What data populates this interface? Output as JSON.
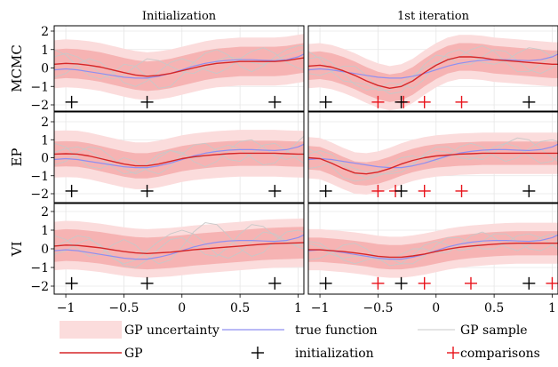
{
  "colors": {
    "band_outer": "#fbdcdc",
    "band_inner": "#f6b3b3",
    "gp_mean": "#d62728",
    "true_function": "#8f8ff0",
    "gp_sample": "#c8c8c8",
    "initialization_marker": "#000000",
    "comparison_marker": "#e8131b",
    "axes": "#000000"
  },
  "chart_data": {
    "type": "line",
    "layout": "3x2 grid of subplots",
    "column_titles": [
      "Initialization",
      "1st iteration"
    ],
    "row_labels": [
      "MCMC",
      "EP",
      "VI"
    ],
    "xlim": [
      -1.1,
      1.05
    ],
    "ylim": [
      -2.4,
      2.4
    ],
    "xticks": [
      -1,
      -0.5,
      0,
      0.5,
      1
    ],
    "xtick_labels": [
      "−1",
      "−0.5",
      "0",
      "0.5",
      "1"
    ],
    "yticks": [
      -2,
      -1,
      0,
      1,
      2
    ],
    "ytick_labels": [
      "−2",
      "−1",
      "0",
      "1",
      "2"
    ],
    "grid": true,
    "legend_position": "bottom",
    "legend": [
      {
        "key": "band",
        "label": "GP uncertainty"
      },
      {
        "key": "true",
        "label": "true function"
      },
      {
        "key": "sample",
        "label": "GP sample"
      },
      {
        "key": "mean",
        "label": "GP"
      },
      {
        "key": "init",
        "label": "initialization"
      },
      {
        "key": "comp",
        "label": "comparisons"
      }
    ],
    "x": [
      -1.1,
      -1.0,
      -0.9,
      -0.8,
      -0.7,
      -0.6,
      -0.5,
      -0.4,
      -0.3,
      -0.2,
      -0.1,
      0.0,
      0.1,
      0.2,
      0.3,
      0.4,
      0.5,
      0.6,
      0.7,
      0.8,
      0.9,
      1.0,
      1.05
    ],
    "true_function": [
      -0.1,
      -0.05,
      -0.1,
      -0.2,
      -0.3,
      -0.4,
      -0.5,
      -0.55,
      -0.55,
      -0.45,
      -0.3,
      -0.1,
      0.1,
      0.25,
      0.35,
      0.42,
      0.45,
      0.45,
      0.42,
      0.4,
      0.45,
      0.6,
      0.75
    ],
    "panels": [
      {
        "row": 0,
        "col": 0,
        "mean": [
          0.2,
          0.25,
          0.22,
          0.15,
          0.05,
          -0.1,
          -0.25,
          -0.38,
          -0.45,
          -0.4,
          -0.3,
          -0.15,
          0.0,
          0.15,
          0.25,
          0.3,
          0.35,
          0.35,
          0.35,
          0.35,
          0.4,
          0.5,
          0.55
        ],
        "inner_sd": 0.8,
        "outer_sd": 1.3,
        "initialization": [
          -0.95,
          -0.3,
          0.8
        ],
        "comparisons": [],
        "samples": [
          [
            0.6,
            0.8,
            0.6,
            0.2,
            -0.3,
            -0.6,
            -0.4,
            0.1,
            0.5,
            0.4,
            0.1,
            -0.2,
            -0.3,
            0.0,
            0.4,
            0.6,
            0.5,
            0.3,
            0.2,
            0.4,
            0.7,
            0.9,
            1.0
          ],
          [
            -0.5,
            -0.3,
            0.2,
            0.5,
            0.3,
            -0.2,
            -0.8,
            -1.0,
            -0.7,
            -0.2,
            0.3,
            0.5,
            0.3,
            -0.1,
            -0.3,
            0.0,
            0.5,
            0.9,
            1.1,
            0.8,
            0.3,
            0.0,
            -0.1
          ],
          [
            1.0,
            0.7,
            0.1,
            -0.4,
            -0.6,
            -0.3,
            0.2,
            0.1,
            -0.5,
            -1.1,
            -1.0,
            -0.4,
            0.3,
            0.8,
            1.0,
            0.7,
            0.1,
            -0.2,
            0.1,
            0.6,
            1.0,
            1.2,
            1.2
          ]
        ]
      },
      {
        "row": 0,
        "col": 1,
        "mean": [
          0.1,
          0.15,
          0.05,
          -0.15,
          -0.4,
          -0.7,
          -0.95,
          -1.1,
          -1.0,
          -0.7,
          -0.25,
          0.15,
          0.45,
          0.6,
          0.6,
          0.55,
          0.45,
          0.4,
          0.35,
          0.3,
          0.25,
          0.2,
          0.2
        ],
        "inner_sd": 0.75,
        "outer_sd": 1.2,
        "initialization": [
          -0.95,
          -0.3,
          0.8
        ],
        "comparisons": [
          -0.5,
          -0.28,
          -0.1,
          0.22
        ],
        "samples": [
          [
            0.5,
            0.6,
            0.3,
            -0.3,
            -0.9,
            -1.2,
            -1.1,
            -0.8,
            -0.9,
            -1.1,
            -0.6,
            0.2,
            0.8,
            1.0,
            0.7,
            0.3,
            0.2,
            0.4,
            0.8,
            1.1,
            1.0,
            0.6,
            0.4
          ],
          [
            -0.3,
            -0.4,
            -0.2,
            0.1,
            0.1,
            -0.4,
            -1.0,
            -1.4,
            -1.3,
            -0.6,
            0.2,
            0.7,
            0.6,
            0.2,
            0.2,
            0.6,
            1.0,
            0.9,
            0.4,
            -0.1,
            -0.3,
            0.0,
            0.3
          ],
          [
            0.9,
            0.5,
            -0.2,
            -0.7,
            -0.8,
            -0.9,
            -1.2,
            -1.2,
            -0.8,
            -0.4,
            0.0,
            0.3,
            0.4,
            0.6,
            1.0,
            1.2,
            0.9,
            0.3,
            -0.2,
            -0.2,
            0.2,
            0.7,
            0.9
          ]
        ]
      },
      {
        "row": 1,
        "col": 0,
        "mean": [
          0.2,
          0.22,
          0.2,
          0.1,
          -0.05,
          -0.2,
          -0.35,
          -0.45,
          -0.45,
          -0.35,
          -0.2,
          -0.05,
          0.05,
          0.12,
          0.18,
          0.22,
          0.25,
          0.25,
          0.25,
          0.25,
          0.22,
          0.2,
          0.2
        ],
        "inner_sd": 0.7,
        "outer_sd": 1.3,
        "initialization": [
          -0.95,
          -0.3,
          0.8
        ],
        "comparisons": [],
        "samples": [
          [
            0.8,
            0.6,
            0.0,
            -0.5,
            -0.6,
            -0.3,
            0.0,
            -0.2,
            -0.7,
            -0.9,
            -0.5,
            0.2,
            0.7,
            0.8,
            0.4,
            -0.1,
            -0.2,
            0.2,
            0.7,
            0.8,
            0.4,
            -0.1,
            -0.3
          ],
          [
            -0.4,
            -0.2,
            0.3,
            0.6,
            0.5,
            0.0,
            -0.6,
            -0.9,
            -0.6,
            0.0,
            0.4,
            0.3,
            -0.2,
            -0.5,
            -0.2,
            0.4,
            0.9,
            1.0,
            0.6,
            0.1,
            -0.1,
            0.1,
            0.3
          ],
          [
            0.3,
            0.5,
            0.6,
            0.4,
            0.0,
            -0.5,
            -0.9,
            -0.8,
            -0.3,
            0.2,
            0.4,
            0.2,
            0.0,
            0.1,
            0.5,
            0.7,
            0.5,
            0.0,
            -0.4,
            -0.3,
            0.3,
            0.9,
            1.2
          ]
        ]
      },
      {
        "row": 1,
        "col": 1,
        "mean": [
          0.0,
          -0.05,
          -0.3,
          -0.6,
          -0.85,
          -0.9,
          -0.8,
          -0.6,
          -0.35,
          -0.15,
          0.0,
          0.1,
          0.15,
          0.2,
          0.22,
          0.25,
          0.25,
          0.25,
          0.25,
          0.25,
          0.25,
          0.25,
          0.25
        ],
        "inner_sd": 0.65,
        "outer_sd": 1.15,
        "initialization": [
          -0.95,
          -0.3,
          0.8
        ],
        "comparisons": [
          -0.5,
          -0.35,
          -0.1,
          0.22
        ],
        "samples": [
          [
            0.5,
            0.2,
            -0.5,
            -1.1,
            -1.3,
            -1.2,
            -1.0,
            -0.8,
            -0.6,
            -0.3,
            0.1,
            0.4,
            0.3,
            0.0,
            -0.1,
            0.2,
            0.6,
            0.8,
            0.6,
            0.1,
            -0.3,
            -0.2,
            0.1
          ],
          [
            -0.6,
            -0.5,
            -0.2,
            -0.3,
            -0.6,
            -0.8,
            -0.7,
            -0.3,
            0.0,
            0.1,
            -0.1,
            -0.2,
            0.1,
            0.6,
            0.8,
            0.6,
            0.1,
            -0.2,
            0.0,
            0.5,
            0.9,
            1.0,
            0.9
          ],
          [
            0.2,
            0.4,
            0.2,
            -0.4,
            -0.9,
            -1.1,
            -0.9,
            -0.9,
            -0.8,
            -0.4,
            0.2,
            0.6,
            0.6,
            0.3,
            0.0,
            -0.1,
            0.3,
            0.8,
            1.1,
            1.0,
            0.5,
            0.0,
            -0.2
          ]
        ]
      },
      {
        "row": 2,
        "col": 0,
        "mean": [
          0.15,
          0.2,
          0.18,
          0.12,
          0.05,
          -0.05,
          -0.15,
          -0.22,
          -0.25,
          -0.22,
          -0.18,
          -0.12,
          -0.05,
          0.0,
          0.05,
          0.1,
          0.15,
          0.2,
          0.25,
          0.28,
          0.3,
          0.32,
          0.33
        ],
        "inner_sd": 0.85,
        "outer_sd": 1.3,
        "initialization": [
          -0.95,
          -0.3,
          0.8
        ],
        "comparisons": [],
        "samples": [
          [
            0.7,
            0.5,
            0.0,
            -0.4,
            -0.3,
            0.2,
            0.5,
            0.2,
            -0.4,
            -0.8,
            -0.6,
            0.1,
            0.9,
            1.4,
            1.3,
            0.7,
            0.0,
            -0.4,
            -0.2,
            0.4,
            0.9,
            1.0,
            0.9
          ],
          [
            -0.3,
            -0.1,
            0.3,
            0.5,
            0.2,
            -0.4,
            -0.9,
            -1.0,
            -0.6,
            0.0,
            0.5,
            0.6,
            0.2,
            -0.3,
            -0.4,
            0.1,
            0.8,
            1.3,
            1.2,
            0.7,
            0.3,
            0.2,
            0.3
          ],
          [
            0.1,
            0.4,
            0.7,
            0.6,
            0.1,
            -0.5,
            -0.8,
            -0.6,
            -0.1,
            0.4,
            0.8,
            1.0,
            0.8,
            0.3,
            -0.3,
            -0.5,
            -0.2,
            0.4,
            0.9,
            0.8,
            0.4,
            0.1,
            0.0
          ]
        ]
      },
      {
        "row": 2,
        "col": 1,
        "mean": [
          -0.05,
          -0.05,
          -0.1,
          -0.15,
          -0.22,
          -0.3,
          -0.4,
          -0.45,
          -0.45,
          -0.38,
          -0.28,
          -0.15,
          -0.02,
          0.08,
          0.15,
          0.2,
          0.25,
          0.28,
          0.3,
          0.3,
          0.3,
          0.3,
          0.3
        ],
        "inner_sd": 0.65,
        "outer_sd": 1.1,
        "initialization": [
          -0.95,
          -0.3,
          0.8
        ],
        "comparisons": [
          -0.5,
          -0.1,
          0.3,
          1.0
        ],
        "samples": [
          [
            0.4,
            0.3,
            -0.1,
            -0.6,
            -0.8,
            -0.6,
            -0.4,
            -0.5,
            -0.8,
            -0.8,
            -0.4,
            0.2,
            0.6,
            0.6,
            0.3,
            0.0,
            0.0,
            0.3,
            0.7,
            0.8,
            0.6,
            0.2,
            0.0
          ],
          [
            -0.6,
            -0.5,
            -0.2,
            0.2,
            0.3,
            0.0,
            -0.5,
            -0.9,
            -0.8,
            -0.3,
            0.2,
            0.4,
            0.2,
            -0.1,
            0.0,
            0.4,
            0.8,
            0.8,
            0.4,
            0.0,
            -0.1,
            0.2,
            0.5
          ],
          [
            0.3,
            0.1,
            -0.3,
            -0.5,
            -0.4,
            -0.4,
            -0.6,
            -0.6,
            -0.3,
            0.0,
            0.0,
            -0.2,
            -0.2,
            0.2,
            0.7,
            0.9,
            0.6,
            0.1,
            -0.1,
            0.2,
            0.6,
            0.8,
            0.7
          ]
        ]
      }
    ]
  }
}
